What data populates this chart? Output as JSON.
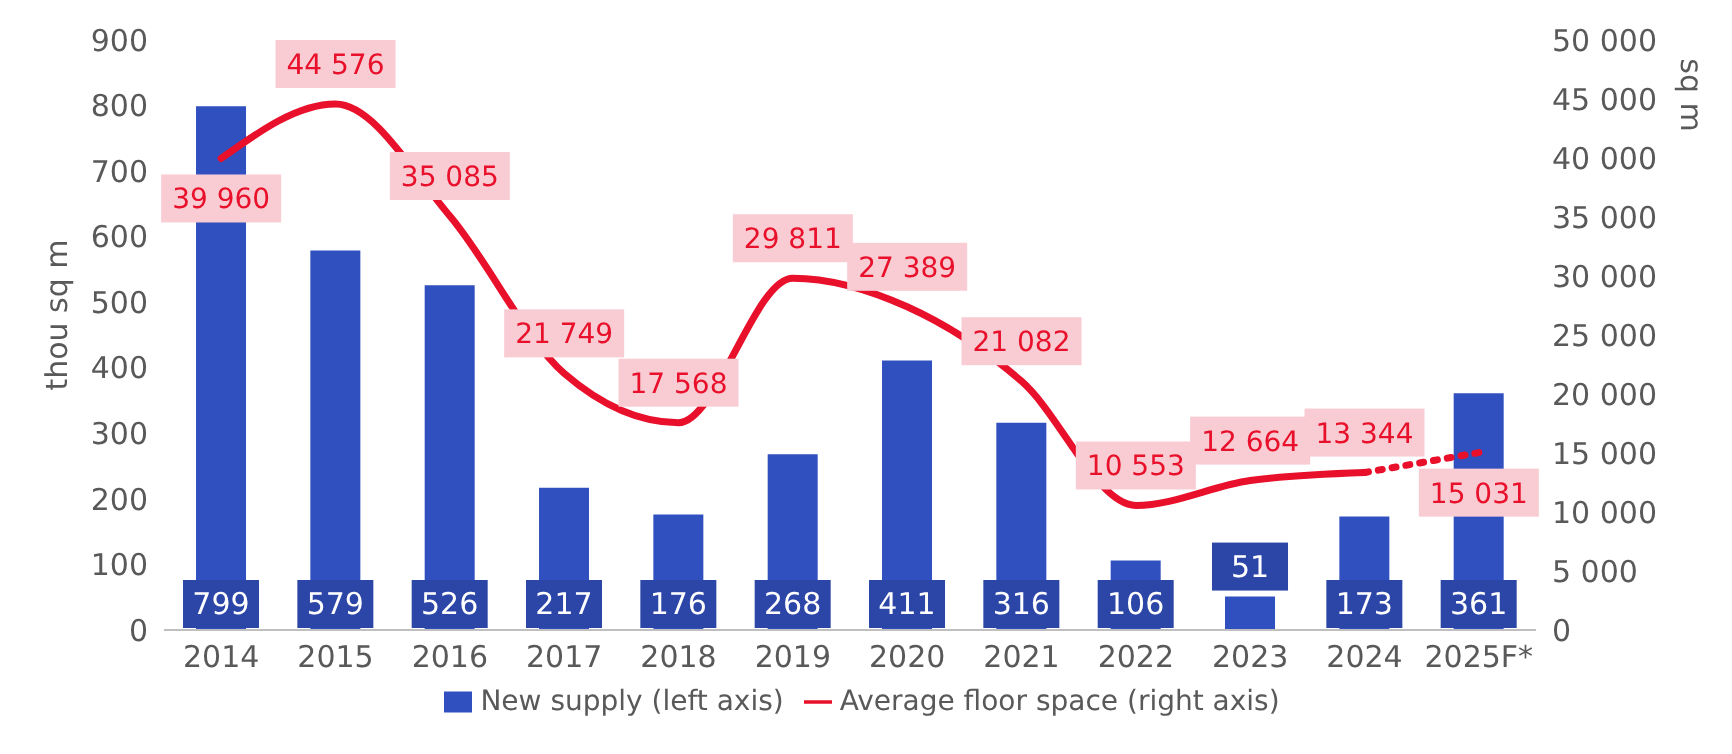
{
  "chart_data": {
    "type": "bar",
    "ylabel": "thou sq m",
    "y2label": "sq m",
    "categories": [
      "2014",
      "2015",
      "2016",
      "2017",
      "2018",
      "2019",
      "2020",
      "2021",
      "2022",
      "2023",
      "2024",
      "2025F*"
    ],
    "series": [
      {
        "name": "New supply (left axis)",
        "color": "#3050c0",
        "values": [
          799,
          579,
          526,
          217,
          176,
          268,
          411,
          316,
          106,
          51,
          173,
          361
        ],
        "value_labels": [
          "799",
          "579",
          "526",
          "217",
          "176",
          "268",
          "411",
          "316",
          "106",
          "51",
          "173",
          "361"
        ]
      },
      {
        "name": "Average floor space (right axis)",
        "type": "line",
        "axis": "y2",
        "color": "#e8102a",
        "line_style": "solid",
        "values": [
          39960,
          44576,
          35085,
          21749,
          17568,
          29811,
          27389,
          21082,
          10553,
          12664,
          13344,
          null
        ],
        "value_labels": [
          "39 960",
          "44 576",
          "35 085",
          "21 749",
          "17 568",
          "29 811",
          "27 389",
          "21 082",
          "10 553",
          "12 664",
          "13 344",
          null
        ]
      },
      {
        "type": "line",
        "axis": "y2",
        "color": "#e8102a",
        "line_style": "dotted",
        "values": [
          null,
          null,
          null,
          null,
          null,
          null,
          null,
          null,
          null,
          null,
          13344,
          15031
        ],
        "value_labels": [
          null,
          null,
          null,
          null,
          null,
          null,
          null,
          null,
          null,
          null,
          null,
          "15 031"
        ]
      }
    ],
    "ylim": [
      0,
      900
    ],
    "yticks": [
      0,
      100,
      200,
      300,
      400,
      500,
      600,
      700,
      800,
      900
    ],
    "y2lim": [
      0,
      50000
    ],
    "y2ticks": [
      {
        "value": 0,
        "label": "0"
      },
      {
        "value": 5000,
        "label": "5 000"
      },
      {
        "value": 10000,
        "label": "10 000"
      },
      {
        "value": 15000,
        "label": "15 000"
      },
      {
        "value": 20000,
        "label": "20 000"
      },
      {
        "value": 25000,
        "label": "25 000"
      },
      {
        "value": 30000,
        "label": "30 000"
      },
      {
        "value": 35000,
        "label": "35 000"
      },
      {
        "value": 40000,
        "label": "40 000"
      },
      {
        "value": 45000,
        "label": "45 000"
      },
      {
        "value": 50000,
        "label": "50 000"
      }
    ],
    "legend": "bottom",
    "grid": false
  }
}
